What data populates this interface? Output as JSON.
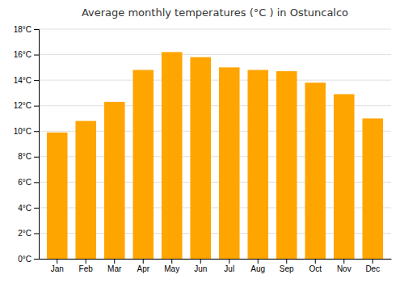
{
  "chart_data": {
    "type": "bar",
    "title": "Average monthly temperatures (°C ) in Ostuncalco",
    "categories": [
      "Jan",
      "Feb",
      "Mar",
      "Apr",
      "May",
      "Jun",
      "Jul",
      "Aug",
      "Sep",
      "Oct",
      "Nov",
      "Dec"
    ],
    "values": [
      9.9,
      10.8,
      12.3,
      14.8,
      16.2,
      15.8,
      15.0,
      14.8,
      14.7,
      13.8,
      12.9,
      11.0
    ],
    "color": "#FFA500",
    "ylim": [
      0,
      18
    ],
    "yticks": [
      {
        "value": 0,
        "label": "0°C"
      },
      {
        "value": 2,
        "label": "2°C"
      },
      {
        "value": 4,
        "label": "4°C"
      },
      {
        "value": 6,
        "label": "6°C"
      },
      {
        "value": 8,
        "label": "8°C"
      },
      {
        "value": 10,
        "label": "10°C"
      },
      {
        "value": 12,
        "label": "12°C"
      },
      {
        "value": 14,
        "label": "14°C"
      },
      {
        "value": 16,
        "label": "16°C"
      },
      {
        "value": 18,
        "label": "18°C"
      }
    ],
    "grid": true
  }
}
